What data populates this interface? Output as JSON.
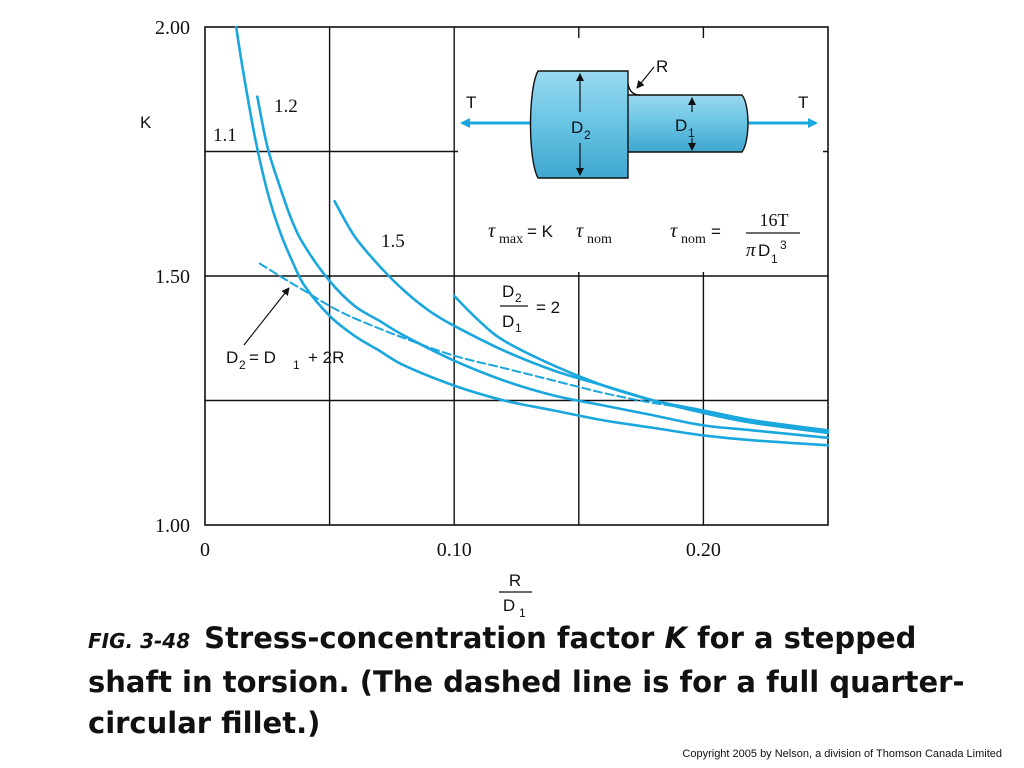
{
  "chart_data": {
    "type": "line",
    "ylabel": "K",
    "xlabel": {
      "numerator": "R",
      "denominator": "D",
      "denominator_sub": "1"
    },
    "xlim": [
      0,
      0.25
    ],
    "ylim": [
      1.0,
      2.0
    ],
    "grid": true,
    "x_ticks": [
      {
        "value": 0,
        "label": "0"
      },
      {
        "value": 0.1,
        "label": "0.10"
      },
      {
        "value": 0.2,
        "label": "0.20"
      }
    ],
    "y_ticks": [
      {
        "value": 1.0,
        "label": "1.00"
      },
      {
        "value": 1.5,
        "label": "1.50"
      },
      {
        "value": 2.0,
        "label": "2.00"
      }
    ],
    "series": [
      {
        "name": "1.1",
        "dashed": false,
        "x": [
          0.0125,
          0.015,
          0.02,
          0.025,
          0.03,
          0.035,
          0.04,
          0.05,
          0.06,
          0.07,
          0.08,
          0.1,
          0.12,
          0.14,
          0.16,
          0.18,
          0.2,
          0.22,
          0.25
        ],
        "y": [
          2.0,
          1.92,
          1.78,
          1.67,
          1.59,
          1.53,
          1.48,
          1.42,
          1.38,
          1.35,
          1.32,
          1.28,
          1.25,
          1.23,
          1.21,
          1.195,
          1.18,
          1.17,
          1.16
        ]
      },
      {
        "name": "1.2",
        "dashed": false,
        "x": [
          0.021,
          0.025,
          0.03,
          0.035,
          0.04,
          0.05,
          0.06,
          0.07,
          0.08,
          0.1,
          0.12,
          0.14,
          0.16,
          0.18,
          0.2,
          0.22,
          0.25
        ],
        "y": [
          1.86,
          1.76,
          1.68,
          1.61,
          1.56,
          1.49,
          1.44,
          1.41,
          1.38,
          1.33,
          1.29,
          1.26,
          1.24,
          1.22,
          1.2,
          1.19,
          1.175
        ]
      },
      {
        "name": "1.5",
        "dashed": false,
        "x": [
          0.052,
          0.06,
          0.07,
          0.08,
          0.09,
          0.1,
          0.12,
          0.14,
          0.16,
          0.18,
          0.2,
          0.22,
          0.25
        ],
        "y": [
          1.65,
          1.58,
          1.52,
          1.47,
          1.43,
          1.4,
          1.35,
          1.31,
          1.28,
          1.25,
          1.225,
          1.205,
          1.185
        ]
      },
      {
        "name": "D2/D1 = 2",
        "dashed": false,
        "x": [
          0.1,
          0.11,
          0.12,
          0.14,
          0.16,
          0.18,
          0.2,
          0.22,
          0.25
        ],
        "y": [
          1.46,
          1.41,
          1.37,
          1.32,
          1.28,
          1.25,
          1.23,
          1.21,
          1.19
        ]
      },
      {
        "name": "D2 = D1 + 2R",
        "dashed": true,
        "x": [
          0.022,
          0.03,
          0.04,
          0.05,
          0.06,
          0.08,
          0.1,
          0.12,
          0.14,
          0.16,
          0.18,
          0.2,
          0.22,
          0.25
        ],
        "y": [
          1.525,
          1.5,
          1.47,
          1.44,
          1.415,
          1.375,
          1.34,
          1.315,
          1.29,
          1.265,
          1.245,
          1.23,
          1.21,
          1.185
        ]
      }
    ],
    "curve_labels": {
      "s1": "1.1",
      "s2": "1.2",
      "s3": "1.5",
      "ratio": {
        "top_main": "D",
        "top_sub": "2",
        "bottom_main": "D",
        "bottom_sub": "1",
        "rhs": "= 2"
      },
      "dashed": {
        "a": "D",
        "a_sub": "2",
        "eq": "= D",
        "b_sub": "1",
        "rhs": "+ 2R"
      }
    },
    "inset": {
      "torque_left": "T",
      "torque_right": "T",
      "radius": "R",
      "d2_main": "D",
      "d2_sub": "2",
      "d1_main": "D",
      "d1_sub": "1",
      "fill_color": "#6cc6e6",
      "arrow_color": "#1aa7dd"
    },
    "formulas": {
      "f1": {
        "tau": "τ",
        "max_sub": "max",
        "eq": " = K",
        "tau2": "τ",
        "nom_sub": "nom"
      },
      "f2": {
        "tau": "τ",
        "nom_sub": "nom",
        "eq": " =",
        "numerator": "16T",
        "den_pi": "π",
        "den_D": "D",
        "den_sub": "1",
        "den_sup": "3"
      }
    },
    "colors": {
      "curve": "#1aa7dd",
      "grid": "#111111"
    }
  },
  "caption": {
    "fig": "FIG. 3-48",
    "part1": "Stress-concentration factor ",
    "k": "K",
    "part2": " for a stepped shaft in torsion. (The dashed line is for a full quarter-circular fillet.)"
  },
  "copyright": "Copyright 2005 by Nelson, a division of Thomson Canada Limited"
}
